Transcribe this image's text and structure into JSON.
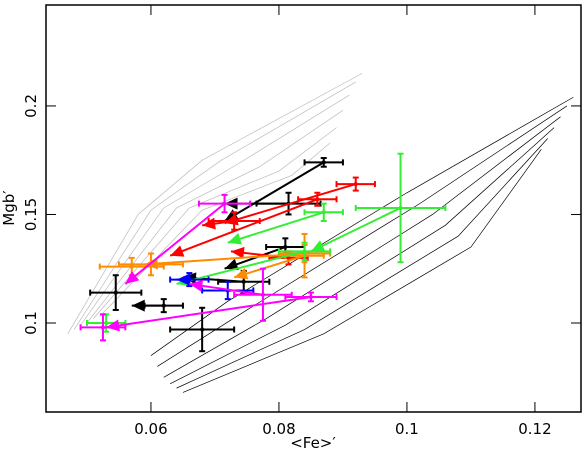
{
  "chart_data": {
    "type": "scatter",
    "x_label": "<Fe>′",
    "y_label": "Mgb′",
    "xlim": [
      0.0436,
      0.1272
    ],
    "ylim": [
      0.059,
      0.2465
    ],
    "xticks": [
      0.06,
      0.08,
      0.1,
      0.12
    ],
    "yticks": [
      0.1,
      0.15,
      0.2
    ],
    "models": [
      {
        "color": "#bbbbbb",
        "x": [
          0.047,
          0.058,
          0.068,
          0.093
        ],
        "y": [
          0.095,
          0.15,
          0.175,
          0.215
        ]
      },
      {
        "color": "#bbbbbb",
        "x": [
          0.048,
          0.06,
          0.071,
          0.092
        ],
        "y": [
          0.097,
          0.152,
          0.175,
          0.211
        ]
      },
      {
        "color": "#bbbbbb",
        "x": [
          0.049,
          0.062,
          0.074,
          0.091
        ],
        "y": [
          0.099,
          0.153,
          0.174,
          0.205
        ]
      },
      {
        "color": "#bbbbbb",
        "x": [
          0.05,
          0.064,
          0.077,
          0.09
        ],
        "y": [
          0.1,
          0.153,
          0.172,
          0.198
        ]
      },
      {
        "color": "#bbbbbb",
        "x": [
          0.051,
          0.066,
          0.08,
          0.089
        ],
        "y": [
          0.102,
          0.153,
          0.17,
          0.19
        ]
      },
      {
        "color": "#bbbbbb",
        "x": [
          0.052,
          0.068,
          0.082,
          0.088
        ],
        "y": [
          0.103,
          0.152,
          0.168,
          0.183
        ]
      },
      {
        "color": "#000000",
        "x": [
          0.06,
          0.072,
          0.1,
          0.126
        ],
        "y": [
          0.085,
          0.11,
          0.16,
          0.204
        ]
      },
      {
        "color": "#000000",
        "x": [
          0.061,
          0.075,
          0.102,
          0.125
        ],
        "y": [
          0.08,
          0.106,
          0.155,
          0.2
        ]
      },
      {
        "color": "#000000",
        "x": [
          0.062,
          0.078,
          0.104,
          0.124
        ],
        "y": [
          0.075,
          0.102,
          0.15,
          0.195
        ]
      },
      {
        "color": "#000000",
        "x": [
          0.063,
          0.081,
          0.106,
          0.123
        ],
        "y": [
          0.072,
          0.099,
          0.145,
          0.19
        ]
      },
      {
        "color": "#000000",
        "x": [
          0.064,
          0.084,
          0.108,
          0.122
        ],
        "y": [
          0.07,
          0.097,
          0.14,
          0.185
        ]
      },
      {
        "color": "#000000",
        "x": [
          0.065,
          0.087,
          0.11,
          0.121
        ],
        "y": [
          0.068,
          0.095,
          0.135,
          0.18
        ]
      }
    ],
    "series": [
      {
        "color": "#000000",
        "x": [
          0.087,
          0.0815,
          0.081,
          0.0745,
          0.0545,
          0.068,
          0.062
        ],
        "y": [
          0.174,
          0.155,
          0.135,
          0.119,
          0.114,
          0.097,
          0.108
        ],
        "xerr": [
          0.003,
          0.005,
          0.003,
          0.004,
          0.004,
          0.005,
          0.003
        ],
        "yerr": [
          0.002,
          0.005,
          0.004,
          0.005,
          0.008,
          0.01,
          0.003
        ],
        "arrow_x": [
          0.0715,
          0.0715,
          0.0715,
          0.065,
          null,
          null,
          0.057
        ],
        "arrow_y": [
          0.147,
          0.155,
          0.125,
          0.121,
          null,
          null,
          0.108
        ]
      },
      {
        "color": "#ff0000",
        "x": [
          0.092,
          0.086,
          0.073,
          0.0815
        ],
        "y": [
          0.164,
          0.157,
          0.147,
          0.13
        ],
        "xerr": [
          0.003,
          0.003,
          0.004,
          0.003
        ],
        "yerr": [
          0.003,
          0.003,
          0.004,
          0.003
        ],
        "arrow_x": [
          0.0715,
          0.063,
          0.068,
          0.0725
        ],
        "arrow_y": [
          0.146,
          0.131,
          0.145,
          0.133
        ]
      },
      {
        "color": "#ff8c00",
        "x": [
          0.084,
          0.06,
          0.084,
          0.057
        ],
        "y": [
          0.132,
          0.127,
          0.131,
          0.126
        ],
        "xerr": [
          0.004,
          0.005,
          0.003,
          0.005
        ],
        "yerr": [
          0.004,
          0.005,
          0.01,
          0.004
        ],
        "arrow_x": [
          0.059,
          null,
          0.073,
          null
        ],
        "arrow_y": [
          0.127,
          null,
          0.121,
          null
        ]
      },
      {
        "color": "#33ee33",
        "x": [
          0.099,
          0.087,
          0.084,
          0.053
        ],
        "y": [
          0.153,
          0.151,
          0.133,
          0.1
        ],
        "xerr": [
          0.007,
          0.003,
          0.004,
          0.003
        ],
        "yerr": [
          0.025,
          0.004,
          0.004,
          0.004
        ],
        "arrow_x": [
          0.085,
          0.072,
          0.064,
          null
        ],
        "arrow_y": [
          0.133,
          0.137,
          0.118,
          null
        ]
      },
      {
        "color": "#0000ff",
        "x": [
          0.066,
          0.072
        ],
        "y": [
          0.12,
          0.115
        ],
        "xerr": [
          0.003,
          0.004
        ],
        "yerr": [
          0.003,
          0.004
        ],
        "arrow_x": [
          0.064,
          null
        ],
        "arrow_y": [
          0.12,
          null
        ]
      },
      {
        "color": "#ff00ff",
        "x": [
          0.0775,
          0.0715,
          0.0525,
          0.085
        ],
        "y": [
          0.113,
          0.155,
          0.098,
          0.112
        ],
        "xerr": [
          0.0045,
          0.004,
          0.0035,
          0.004
        ],
        "yerr": [
          0.012,
          0.004,
          0.006,
          0.002
        ],
        "arrow_x": [
          0.066,
          0.056,
          null,
          0.053
        ],
        "arrow_y": [
          0.118,
          0.118,
          null,
          0.098
        ]
      }
    ]
  }
}
